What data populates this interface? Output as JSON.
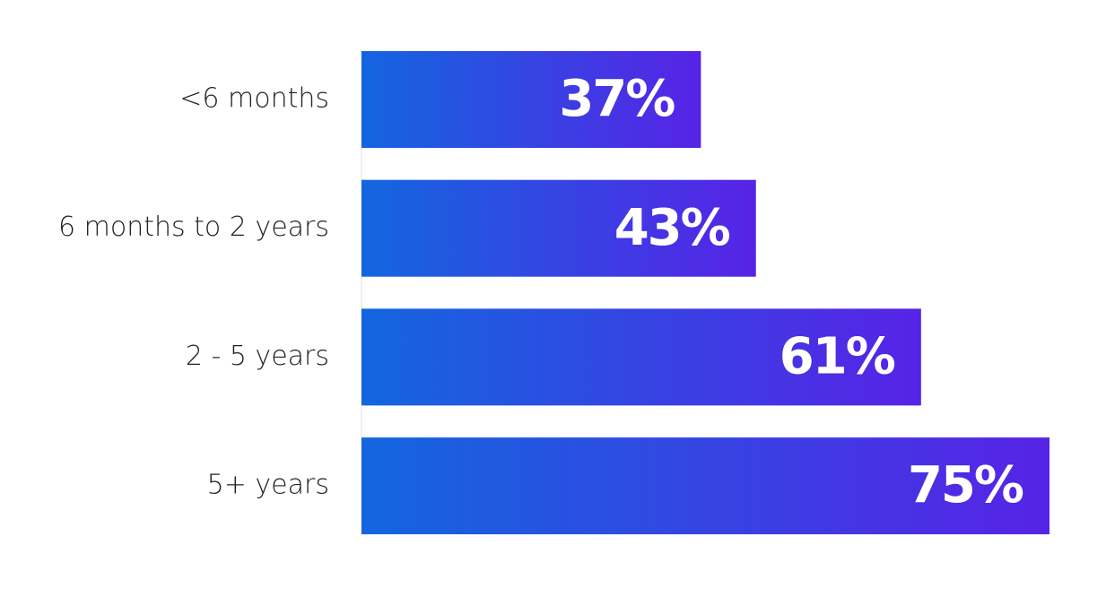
{
  "chart_data": {
    "type": "bar",
    "orientation": "horizontal",
    "categories": [
      "<6 months",
      "6 months to 2 years",
      "2 - 5 years",
      "5+ years"
    ],
    "values": [
      37,
      43,
      61,
      75
    ],
    "value_labels": [
      "37%",
      "43%",
      "61%",
      "75%"
    ],
    "gradient": [
      "#1366df",
      "#5723e6"
    ]
  }
}
